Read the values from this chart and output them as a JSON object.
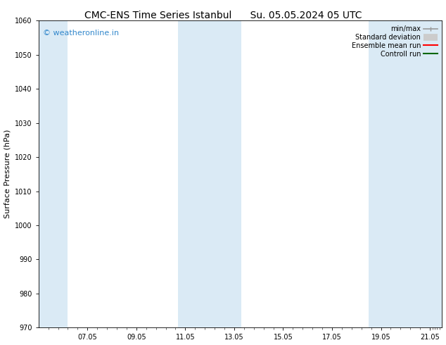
{
  "title_left": "CMC-ENS Time Series Istanbul",
  "title_right": "Su. 05.05.2024 05 UTC",
  "ylabel": "Surface Pressure (hPa)",
  "ylim": [
    970,
    1060
  ],
  "yticks": [
    970,
    980,
    990,
    1000,
    1010,
    1020,
    1030,
    1040,
    1050,
    1060
  ],
  "xlim_start": 0.0,
  "xlim_end": 16.5,
  "xtick_labels": [
    "07.05",
    "09.05",
    "11.05",
    "13.05",
    "15.05",
    "17.05",
    "19.05",
    "21.05"
  ],
  "xtick_positions": [
    2.0,
    4.0,
    6.0,
    8.0,
    10.0,
    12.0,
    14.0,
    16.0
  ],
  "shaded_bands": [
    {
      "x_start": 0.0,
      "x_end": 1.2
    },
    {
      "x_start": 5.7,
      "x_end": 8.3
    },
    {
      "x_start": 13.5,
      "x_end": 16.5
    }
  ],
  "shaded_color": "#daeaf5",
  "background_color": "#ffffff",
  "plot_bg_color": "#ffffff",
  "watermark_text": "© weatheronline.in",
  "watermark_color": "#3388cc",
  "legend_entries": [
    {
      "label": "min/max",
      "color": "#999999",
      "lw": 1.2
    },
    {
      "label": "Standard deviation",
      "color": "#cccccc",
      "lw": 1.0
    },
    {
      "label": "Ensemble mean run",
      "color": "#ff0000",
      "lw": 1.5
    },
    {
      "label": "Controll run",
      "color": "#006600",
      "lw": 1.5
    }
  ],
  "title_fontsize": 10,
  "tick_fontsize": 7,
  "ylabel_fontsize": 8,
  "legend_fontsize": 7,
  "watermark_fontsize": 8
}
